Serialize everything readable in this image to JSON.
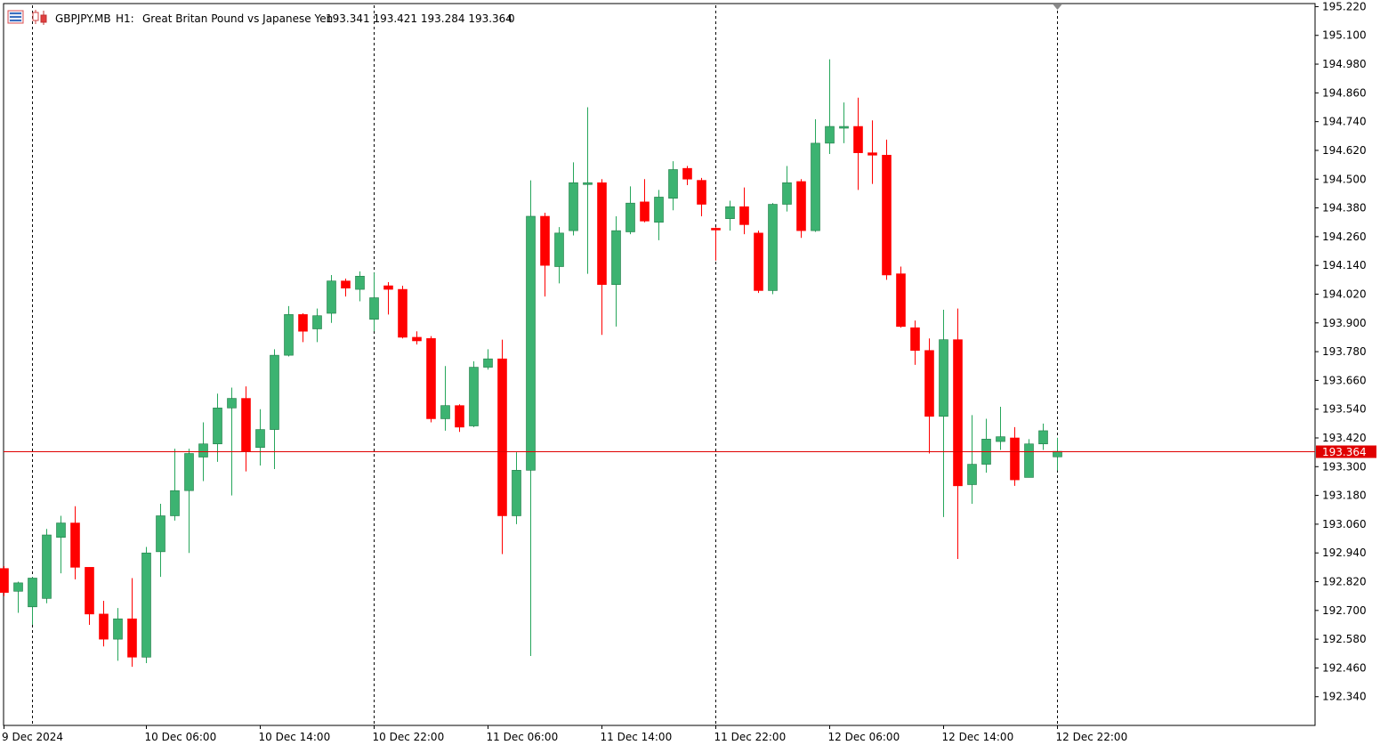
{
  "header": {
    "symbol": "GBPJPY.MB",
    "timeframe": "H1:",
    "description": "Great Britan Pound vs Japanese Yen",
    "ohlc": "193.341 193.421 193.284 193.364",
    "volume": "0"
  },
  "colors": {
    "bull": "#26a65b",
    "bull_fill": "#3cb371",
    "bear": "#ff0000",
    "current_line": "#e00000",
    "grid_separator": "#000000"
  },
  "icons": [
    "chart-window-icon",
    "candles-icon"
  ],
  "chart_data": {
    "type": "candlestick",
    "current_price": "193.364",
    "ylim": [
      192.3,
      195.24
    ],
    "y_ticks": [
      "195.220",
      "195.100",
      "194.980",
      "194.860",
      "194.740",
      "194.620",
      "194.500",
      "194.380",
      "194.260",
      "194.140",
      "194.020",
      "193.900",
      "193.780",
      "193.660",
      "193.540",
      "193.420",
      "193.300",
      "193.180",
      "193.060",
      "192.940",
      "192.820",
      "192.700",
      "192.580",
      "192.460",
      "192.340"
    ],
    "x_labels": [
      "9 Dec 2024",
      "10 Dec 06:00",
      "10 Dec 14:00",
      "10 Dec 22:00",
      "11 Dec 06:00",
      "11 Dec 14:00",
      "11 Dec 22:00",
      "12 Dec 06:00",
      "12 Dec 14:00",
      "12 Dec 22:00"
    ],
    "day_separators": [
      "9 Dec 2024",
      "10 Dec 22:00",
      "11 Dec 22:00",
      "12 Dec 22:00"
    ],
    "ohlc": [
      [
        192.875,
        192.885,
        192.76,
        192.775
      ],
      [
        192.78,
        192.82,
        192.69,
        192.815
      ],
      [
        192.715,
        192.84,
        192.64,
        192.835
      ],
      [
        192.75,
        193.04,
        192.73,
        193.015
      ],
      [
        193.005,
        193.095,
        192.855,
        193.065
      ],
      [
        193.065,
        193.135,
        192.83,
        192.88
      ],
      [
        192.88,
        192.88,
        192.64,
        192.685
      ],
      [
        192.685,
        192.74,
        192.55,
        192.58
      ],
      [
        192.58,
        192.71,
        192.49,
        192.665
      ],
      [
        192.665,
        192.835,
        192.465,
        192.505
      ],
      [
        192.505,
        192.965,
        192.48,
        192.94
      ],
      [
        192.945,
        193.145,
        192.84,
        193.095
      ],
      [
        193.095,
        193.375,
        193.075,
        193.2
      ],
      [
        193.2,
        193.375,
        192.94,
        193.355
      ],
      [
        193.34,
        193.485,
        193.24,
        193.395
      ],
      [
        193.395,
        193.605,
        193.32,
        193.545
      ],
      [
        193.545,
        193.63,
        193.18,
        193.585
      ],
      [
        193.585,
        193.635,
        193.28,
        193.365
      ],
      [
        193.38,
        193.54,
        193.305,
        193.455
      ],
      [
        193.455,
        193.79,
        193.29,
        193.765
      ],
      [
        193.765,
        193.97,
        193.76,
        193.935
      ],
      [
        193.935,
        193.94,
        193.82,
        193.865
      ],
      [
        193.875,
        193.96,
        193.82,
        193.93
      ],
      [
        193.94,
        194.1,
        193.9,
        194.075
      ],
      [
        194.075,
        194.085,
        194.01,
        194.045
      ],
      [
        194.04,
        194.115,
        193.99,
        194.095
      ],
      [
        193.915,
        194.11,
        193.865,
        194.005
      ],
      [
        194.055,
        194.07,
        193.935,
        194.04
      ],
      [
        194.04,
        194.055,
        193.835,
        193.84
      ],
      [
        193.84,
        193.865,
        193.81,
        193.825
      ],
      [
        193.835,
        193.845,
        193.485,
        193.5
      ],
      [
        193.5,
        193.72,
        193.45,
        193.555
      ],
      [
        193.555,
        193.56,
        193.445,
        193.465
      ],
      [
        193.47,
        193.74,
        193.465,
        193.715
      ],
      [
        193.715,
        193.79,
        193.705,
        193.75
      ],
      [
        193.75,
        193.83,
        192.935,
        193.095
      ],
      [
        193.095,
        193.36,
        193.06,
        193.285
      ],
      [
        193.285,
        194.495,
        192.51,
        194.345
      ],
      [
        194.345,
        194.36,
        194.01,
        194.14
      ],
      [
        194.135,
        194.3,
        194.065,
        194.275
      ],
      [
        194.285,
        194.57,
        194.265,
        194.485
      ],
      [
        194.485,
        194.8,
        194.105,
        194.485
      ],
      [
        194.485,
        194.5,
        193.85,
        194.06
      ],
      [
        194.06,
        194.345,
        193.885,
        194.285
      ],
      [
        194.28,
        194.47,
        194.27,
        194.4
      ],
      [
        194.405,
        194.5,
        194.32,
        194.325
      ],
      [
        194.32,
        194.455,
        194.245,
        194.425
      ],
      [
        194.42,
        194.575,
        194.37,
        194.54
      ],
      [
        194.545,
        194.555,
        194.475,
        194.5
      ],
      [
        194.495,
        194.505,
        194.345,
        194.395
      ],
      [
        194.295,
        194.3,
        194.16,
        194.29
      ],
      [
        194.335,
        194.41,
        194.285,
        194.385
      ],
      [
        194.385,
        194.465,
        194.27,
        194.31
      ],
      [
        194.275,
        194.285,
        194.025,
        194.035
      ],
      [
        194.035,
        194.4,
        194.02,
        194.395
      ],
      [
        194.395,
        194.555,
        194.365,
        194.485
      ],
      [
        194.49,
        194.5,
        194.255,
        194.285
      ],
      [
        194.285,
        194.75,
        194.28,
        194.65
      ],
      [
        194.65,
        195.0,
        194.605,
        194.72
      ],
      [
        194.715,
        194.82,
        194.65,
        194.72
      ],
      [
        194.72,
        194.84,
        194.455,
        194.61
      ],
      [
        194.61,
        194.745,
        194.48,
        194.6
      ],
      [
        194.6,
        194.665,
        194.08,
        194.1
      ],
      [
        194.105,
        194.135,
        193.88,
        193.885
      ],
      [
        193.88,
        193.91,
        193.725,
        193.785
      ],
      [
        193.785,
        193.835,
        193.355,
        193.51
      ],
      [
        193.51,
        193.955,
        193.09,
        193.83
      ],
      [
        193.83,
        193.96,
        192.915,
        193.22
      ],
      [
        193.225,
        193.515,
        193.145,
        193.31
      ],
      [
        193.31,
        193.5,
        193.275,
        193.415
      ],
      [
        193.405,
        193.55,
        193.37,
        193.425
      ],
      [
        193.42,
        193.465,
        193.22,
        193.245
      ],
      [
        193.255,
        193.415,
        193.255,
        193.395
      ],
      [
        193.395,
        193.48,
        193.37,
        193.45
      ],
      [
        193.341,
        193.421,
        193.284,
        193.364
      ]
    ]
  }
}
